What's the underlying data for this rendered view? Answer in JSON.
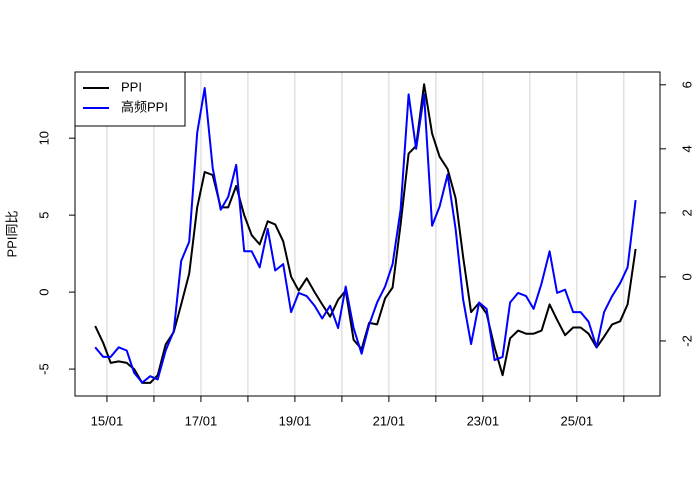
{
  "chart_data": {
    "type": "line",
    "ylabel": "PPI同比",
    "x": [
      2014.75,
      2014.92,
      2015.08,
      2015.25,
      2015.42,
      2015.58,
      2015.75,
      2015.92,
      2016.08,
      2016.25,
      2016.42,
      2016.58,
      2016.75,
      2016.92,
      2017.08,
      2017.25,
      2017.42,
      2017.58,
      2017.75,
      2017.92,
      2018.08,
      2018.25,
      2018.42,
      2018.58,
      2018.75,
      2018.92,
      2019.08,
      2019.25,
      2019.42,
      2019.58,
      2019.75,
      2019.92,
      2020.08,
      2020.25,
      2020.42,
      2020.58,
      2020.75,
      2020.92,
      2021.08,
      2021.25,
      2021.42,
      2021.58,
      2021.75,
      2021.92,
      2022.08,
      2022.25,
      2022.42,
      2022.58,
      2022.75,
      2022.92,
      2023.08,
      2023.25,
      2023.42,
      2023.58,
      2023.75,
      2023.92,
      2024.08,
      2024.25,
      2024.42,
      2024.58,
      2024.75,
      2024.92,
      2025.08,
      2025.25,
      2025.42,
      2025.58,
      2025.75,
      2025.92,
      2026.08,
      2026.25
    ],
    "series": [
      {
        "name": "PPI",
        "color": "#000000",
        "axis": "y",
        "values": [
          -2.2,
          -3.3,
          -4.6,
          -4.5,
          -4.6,
          -5.0,
          -5.9,
          -5.9,
          -5.4,
          -3.4,
          -2.6,
          -0.8,
          1.2,
          5.5,
          7.8,
          7.6,
          5.5,
          5.5,
          6.9,
          5.0,
          3.7,
          3.1,
          4.6,
          4.4,
          3.3,
          1.0,
          0.1,
          0.9,
          0.0,
          -0.8,
          -1.6,
          -0.5,
          0.1,
          -3.1,
          -3.7,
          -2.0,
          -2.1,
          -0.4,
          0.3,
          4.4,
          9.0,
          9.5,
          13.5,
          10.3,
          8.8,
          8.0,
          6.1,
          2.3,
          -1.3,
          -0.7,
          -1.4,
          -3.6,
          -5.4,
          -3.0,
          -2.5,
          -2.7,
          -2.7,
          -2.5,
          -0.8,
          -1.8,
          -2.8,
          -2.3,
          -2.3,
          -2.7,
          -3.6,
          -2.9,
          -2.1,
          -1.9,
          -0.8,
          2.8
        ]
      },
      {
        "name": "高频PPI",
        "color": "#0000ff",
        "axis": "y2",
        "values": [
          -2.2,
          -2.5,
          -2.5,
          -2.2,
          -2.3,
          -3.0,
          -3.3,
          -3.1,
          -3.2,
          -2.3,
          -1.7,
          0.5,
          1.1,
          4.5,
          5.9,
          3.4,
          2.1,
          2.5,
          3.5,
          0.8,
          0.8,
          0.3,
          1.5,
          0.2,
          0.4,
          -1.1,
          -0.5,
          -0.6,
          -0.9,
          -1.3,
          -0.9,
          -1.6,
          -0.3,
          -1.6,
          -2.4,
          -1.5,
          -0.8,
          -0.3,
          0.4,
          2.1,
          5.7,
          4.0,
          5.7,
          1.6,
          2.2,
          3.2,
          1.5,
          -0.7,
          -2.1,
          -0.8,
          -1.0,
          -2.6,
          -2.5,
          -0.8,
          -0.5,
          -0.6,
          -1.0,
          -0.2,
          0.8,
          -0.5,
          -0.4,
          -1.1,
          -1.1,
          -1.4,
          -2.2,
          -1.1,
          -0.6,
          -0.2,
          0.3,
          2.4
        ]
      }
    ],
    "xlim": [
      2014.32,
      2026.77
    ],
    "xticks": [
      {
        "value": 2015,
        "label": "15/01"
      },
      {
        "value": 2016,
        "label": null
      },
      {
        "value": 2017,
        "label": "17/01"
      },
      {
        "value": 2018,
        "label": null
      },
      {
        "value": 2019,
        "label": "19/01"
      },
      {
        "value": 2020,
        "label": null
      },
      {
        "value": 2021,
        "label": "21/01"
      },
      {
        "value": 2022,
        "label": null
      },
      {
        "value": 2023,
        "label": "23/01"
      },
      {
        "value": 2024,
        "label": null
      },
      {
        "value": 2025,
        "label": "25/01"
      },
      {
        "value": 2026,
        "label": null
      }
    ],
    "ylim": [
      -6.75,
      14.3
    ],
    "yticks": [
      -5,
      0,
      5,
      10
    ],
    "y2lim": [
      -3.72,
      6.4
    ],
    "y2ticks": [
      -2,
      0,
      2,
      4,
      6
    ],
    "grid": true,
    "legend": "top-left"
  }
}
